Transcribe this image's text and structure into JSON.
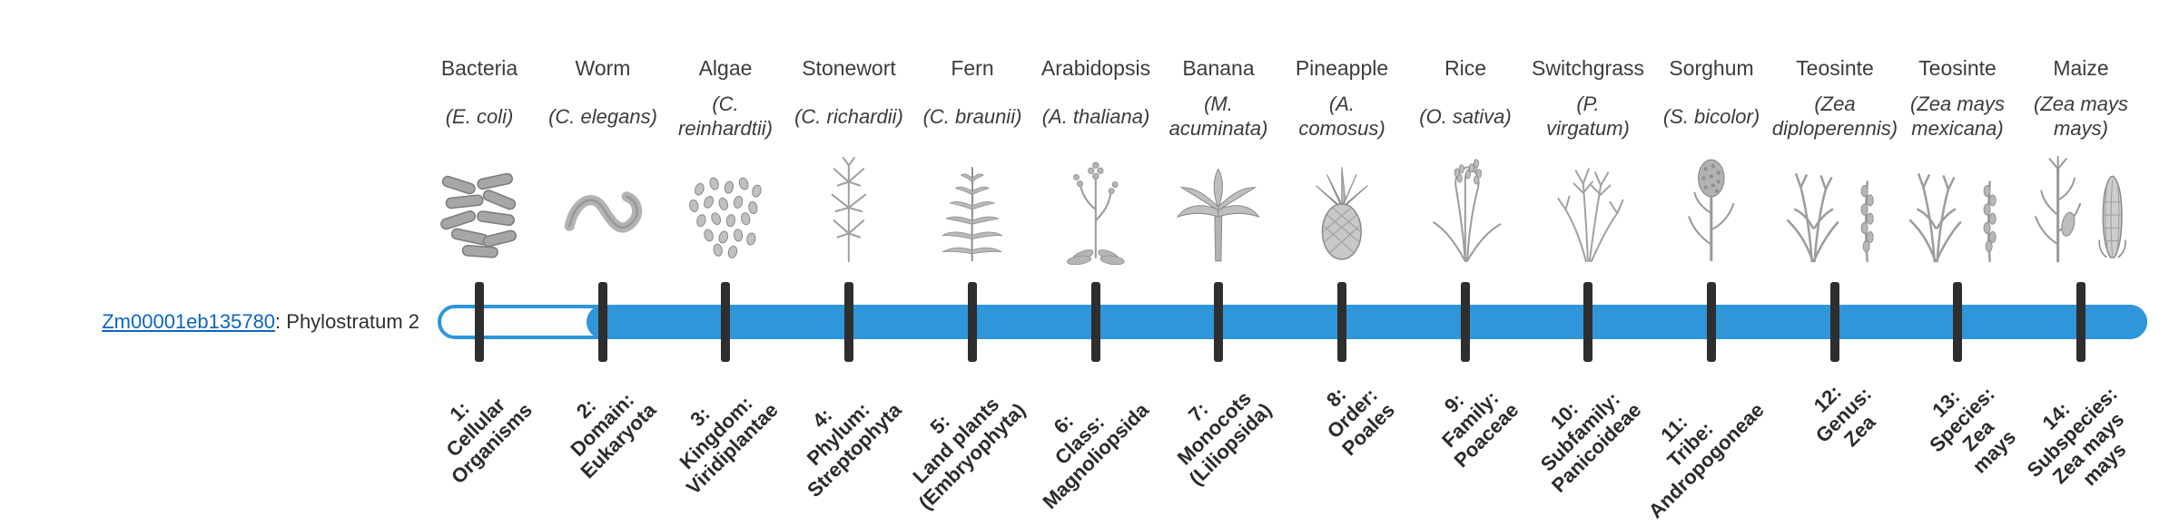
{
  "page": {
    "background": "#ffffff"
  },
  "gene": {
    "id": "Zm00001eb135780",
    "suffix": ": Phylostratum 2",
    "link_color": "#0d65c2"
  },
  "timeline": {
    "bar_color": "#2e96d9",
    "tick_color": "#2e2e2e",
    "total_phylostrata": 14,
    "fill_starts_at_phylostratum": 2
  },
  "columns": [
    {
      "organism": "Bacteria",
      "species": "(E. coli)",
      "icon": "bacteria-icon",
      "tick_label": "1:\nCellular\nOrganisms"
    },
    {
      "organism": "Worm",
      "species": "(C. elegans)",
      "icon": "worm-icon",
      "tick_label": "2:\nDomain:\nEukaryota"
    },
    {
      "organism": "Algae",
      "species": "(C.\nreinhardtii)",
      "icon": "algae-icon",
      "tick_label": "3:\nKingdom:\nViridiplantae"
    },
    {
      "organism": "Stonewort",
      "species": "(C. richardii)",
      "icon": "stonewort-icon",
      "tick_label": "4:\nPhylum:\nStreptophyta"
    },
    {
      "organism": "Fern",
      "species": "(C. braunii)",
      "icon": "fern-icon",
      "tick_label": "5:\nLand plants\n(Embryophyta)"
    },
    {
      "organism": "Arabidopsis",
      "species": "(A. thaliana)",
      "icon": "arabidopsis-icon",
      "tick_label": "6:\nClass:\nMagnoliopsida"
    },
    {
      "organism": "Banana",
      "species": "(M.\nacuminata)",
      "icon": "banana-plant-icon",
      "tick_label": "7:\nMonocots\n(Liliopsida)"
    },
    {
      "organism": "Pineapple",
      "species": "(A.\ncomosus)",
      "icon": "pineapple-icon",
      "tick_label": "8:\nOrder:\nPoales"
    },
    {
      "organism": "Rice",
      "species": "(O. sativa)",
      "icon": "rice-plant-icon",
      "tick_label": "9:\nFamily:\nPoaceae"
    },
    {
      "organism": "Switchgrass",
      "species": "(P.\nvirgatum)",
      "icon": "switchgrass-icon",
      "tick_label": "10:\nSubfamily:\nPanicoideae"
    },
    {
      "organism": "Sorghum",
      "species": "(S. bicolor)",
      "icon": "sorghum-icon",
      "tick_label": "11:\nTribe:\nAndropogoneae"
    },
    {
      "organism": "Teosinte",
      "species": "(Zea\ndiploperennis)",
      "icon": "teosinte-icon",
      "tick_label": "12:\nGenus:\nZea"
    },
    {
      "organism": "Teosinte",
      "species": "(Zea mays\nmexicana)",
      "icon": "teosinte-icon",
      "tick_label": "13:\nSpecies:\nZea\nmays"
    },
    {
      "organism": "Maize",
      "species": "(Zea mays\nmays)",
      "icon": "maize-icon",
      "tick_label": "14:\nSubspecies:\nZea mays\nmays"
    }
  ]
}
